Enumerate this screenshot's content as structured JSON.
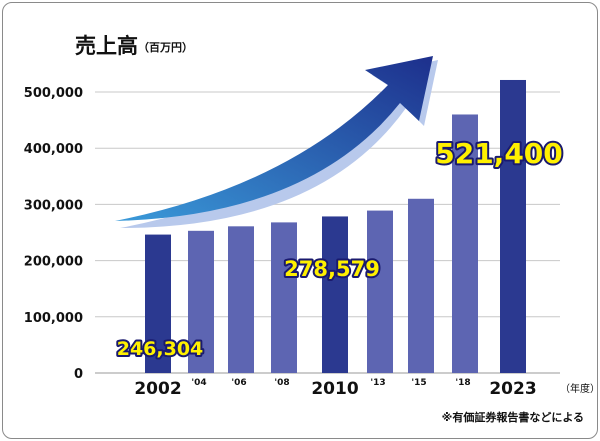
{
  "chart_data": {
    "type": "bar",
    "title": "売上高",
    "unit": "（百万円）",
    "x_unit": "（年度）",
    "source_note": "※有価証券報告書などによる",
    "categories": [
      "2002",
      "'04",
      "'06",
      "'08",
      "2010",
      "'13",
      "'15",
      "'18",
      "2023"
    ],
    "values": [
      246304,
      253000,
      261000,
      268000,
      278579,
      289000,
      310000,
      460000,
      521400
    ],
    "emphasized": [
      true,
      false,
      false,
      false,
      true,
      false,
      false,
      false,
      true
    ],
    "y_ticks": [
      "0",
      "100,000",
      "200,000",
      "300,000",
      "400,000",
      "500,000"
    ],
    "ylim": [
      0,
      560000
    ],
    "grid": true,
    "value_labels": [
      {
        "category": "2002",
        "text": "246,304"
      },
      {
        "category": "2010",
        "text": "278,579"
      },
      {
        "category": "2023",
        "text": "521,400"
      }
    ],
    "colors": {
      "bar_dark": "#2b3990",
      "bar_light": "#5d65b2",
      "label_fill": "#fff000",
      "label_stroke": "#1a1a6e",
      "arrow_dark": "#1d2f8c",
      "arrow_light": "#3a9ad9",
      "grid": "#c8c8c8"
    }
  }
}
